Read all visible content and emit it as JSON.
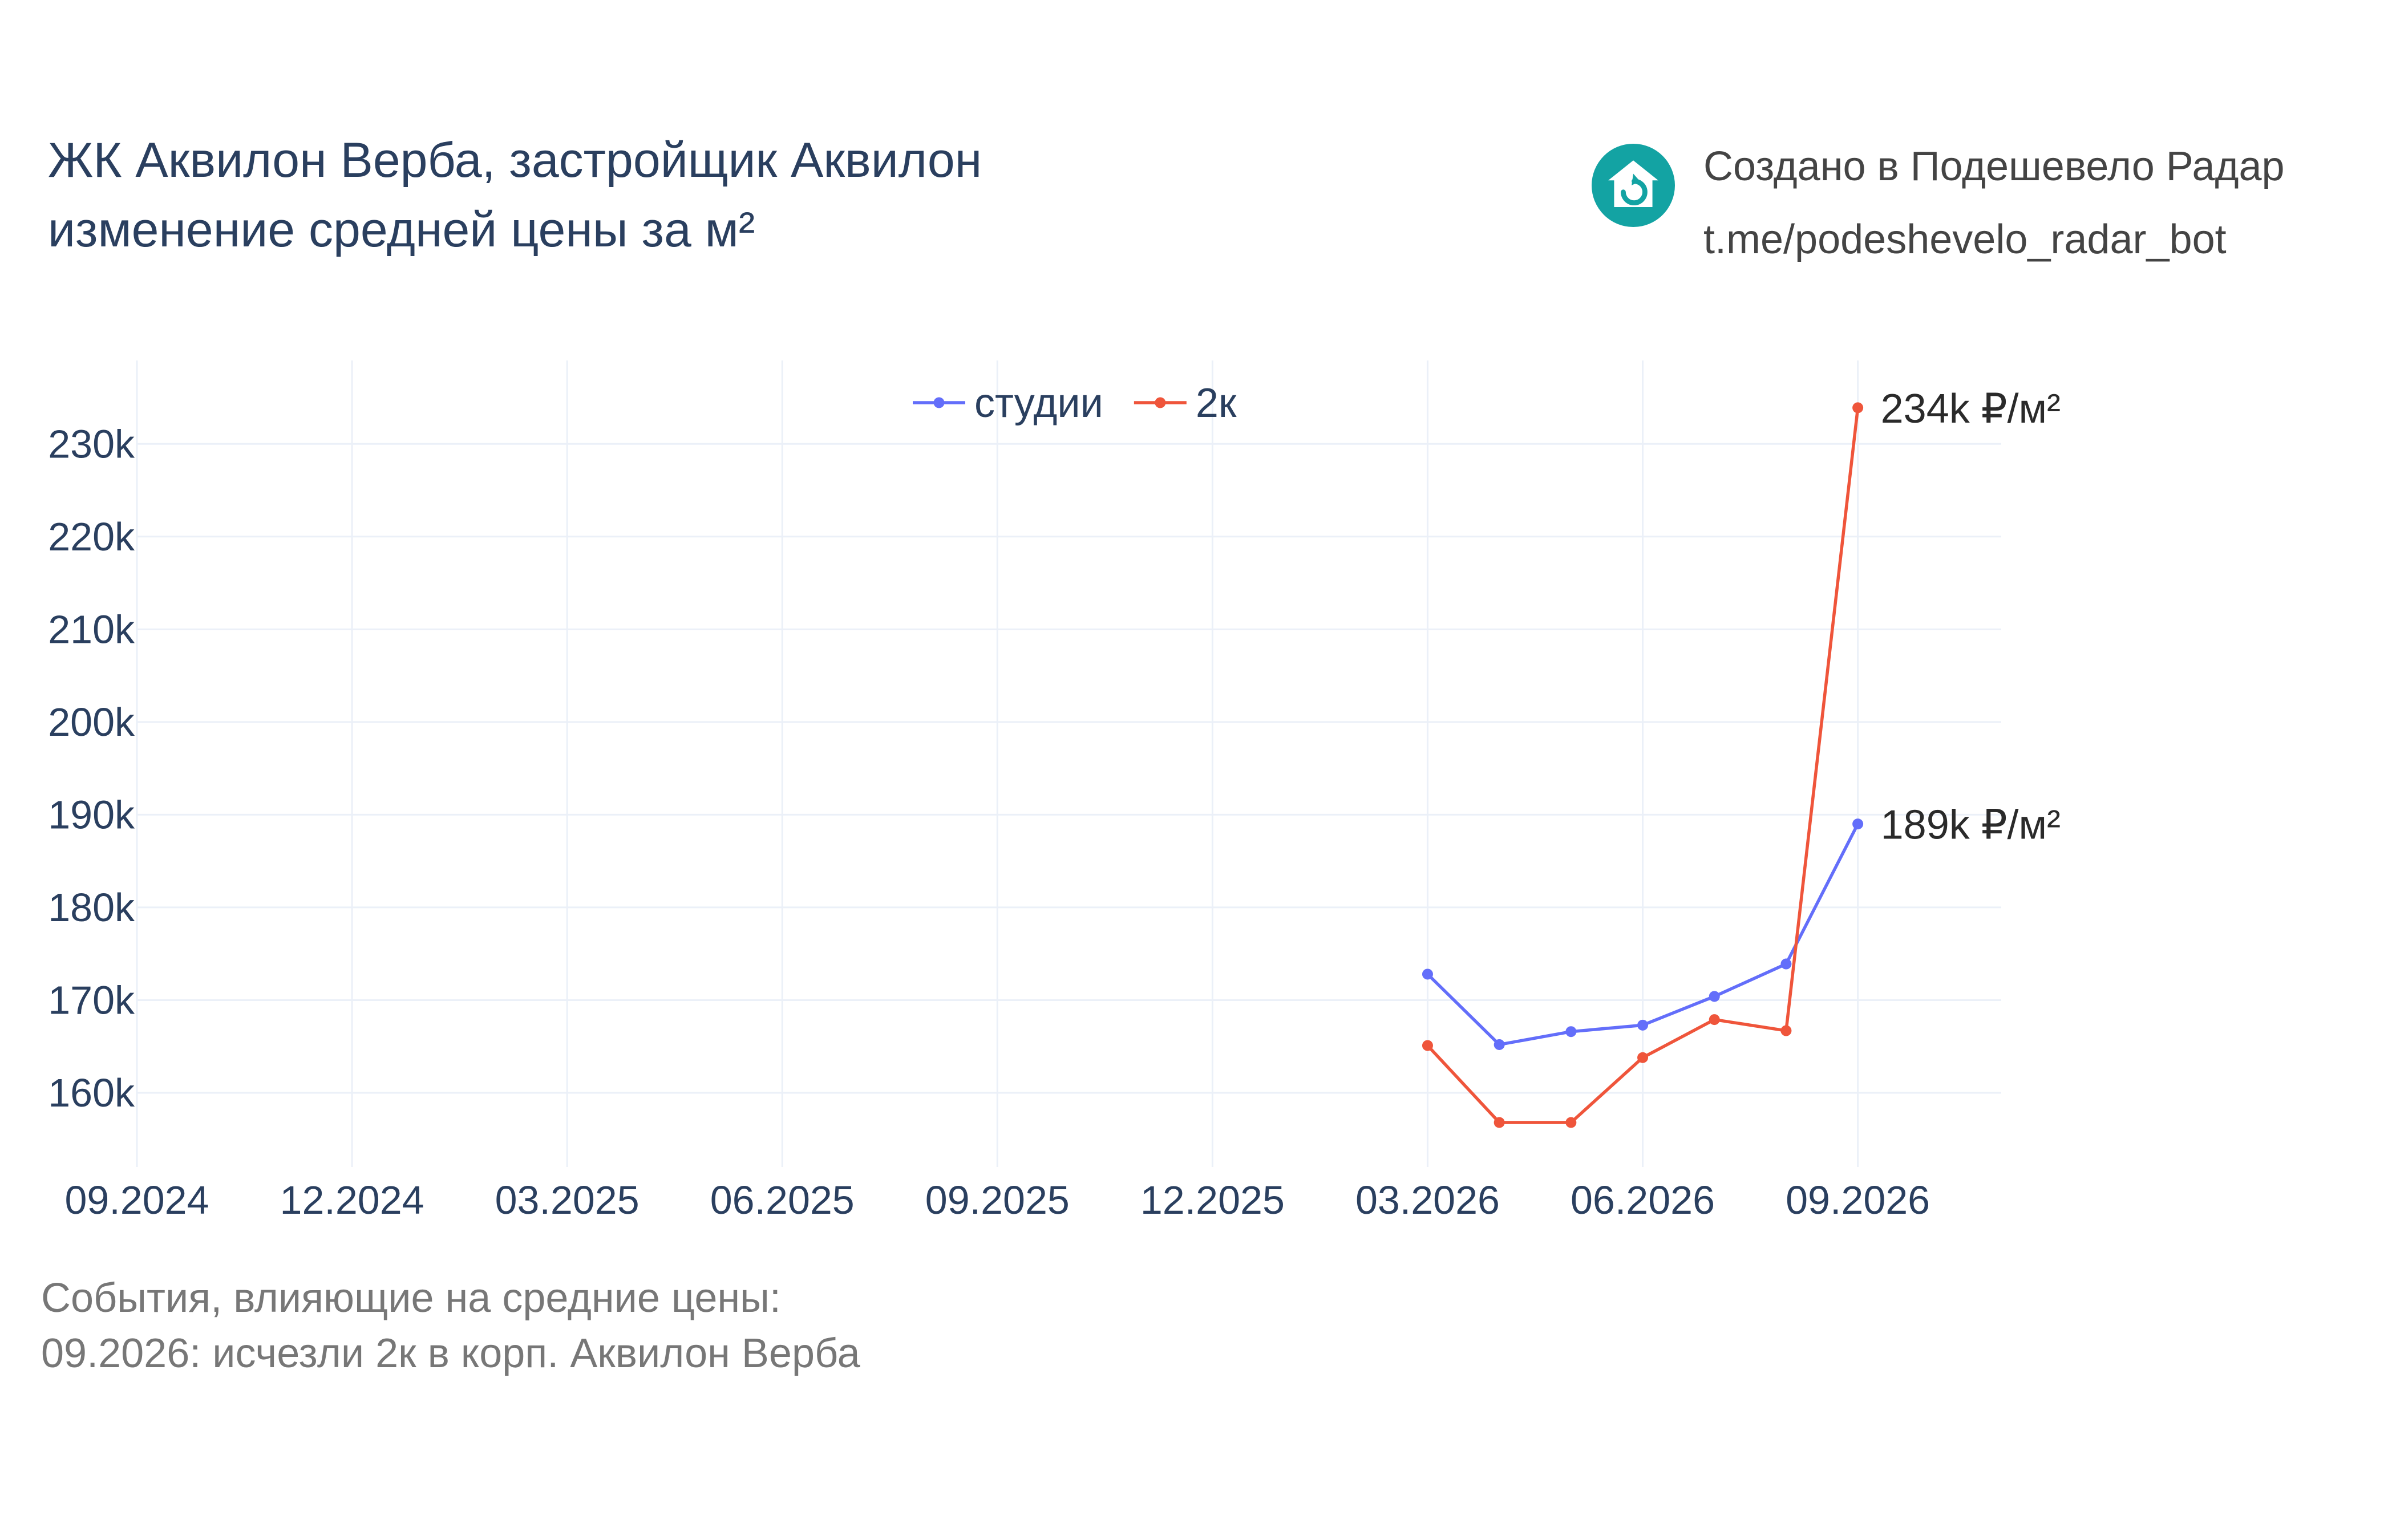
{
  "title_lines": [
    "ЖК Аквилон Верба, застройщик Аквилон",
    "изменение средней цены за м²"
  ],
  "credit": {
    "line1": "Создано в Подешевело Радар",
    "line2": "t.me/podeshevelo_radar_bot",
    "logo_icon": "house-refresh-icon",
    "logo_color": "#13a3a3"
  },
  "notes": {
    "heading": "События, влияющие на средние цены:",
    "items": [
      "09.2026: исчезли 2к в корп. Аквилон Верба"
    ]
  },
  "chart_data": {
    "type": "line",
    "x_ticks": [
      "09.2024",
      "12.2024",
      "03.2025",
      "06.2025",
      "09.2025",
      "12.2025",
      "03.2026",
      "06.2026",
      "09.2026"
    ],
    "x_range": [
      "2024-09",
      "2026-11"
    ],
    "y_ticks": [
      "160k",
      "170k",
      "180k",
      "190k",
      "200k",
      "210k",
      "220k",
      "230k"
    ],
    "y_range": [
      152000,
      239000
    ],
    "grid": true,
    "legend_position": "top-center",
    "series": [
      {
        "name": "студии",
        "color": "#636efa",
        "x": [
          "2026-03",
          "2026-04",
          "2026-05",
          "2026-06",
          "2026-07",
          "2026-08",
          "2026-09"
        ],
        "y": [
          172800,
          165200,
          166600,
          167300,
          170400,
          173900,
          189000
        ],
        "end_label": "189k ₽/м²"
      },
      {
        "name": "2к",
        "color": "#ef553b",
        "x": [
          "2026-03",
          "2026-04",
          "2026-05",
          "2026-06",
          "2026-07",
          "2026-08",
          "2026-09"
        ],
        "y": [
          165100,
          156800,
          156800,
          163800,
          167900,
          166700,
          233900
        ],
        "end_label": "234k ₽/м²"
      }
    ]
  }
}
